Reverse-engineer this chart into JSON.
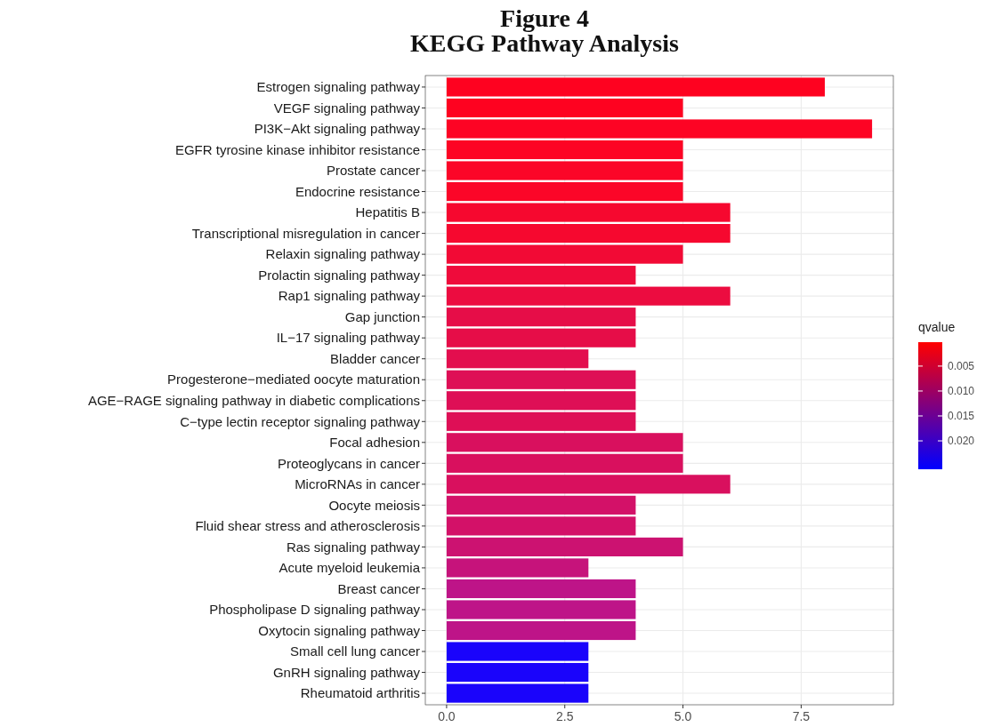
{
  "chart_data": {
    "type": "bar",
    "orientation": "horizontal",
    "title": "Figure 4\nKEGG Pathway Analysis",
    "categories": [
      "Estrogen signaling pathway",
      "VEGF signaling pathway",
      "PI3K−Akt signaling pathway",
      "EGFR tyrosine kinase inhibitor resistance",
      "Prostate cancer",
      "Endocrine resistance",
      "Hepatitis B",
      "Transcriptional misregulation in cancer",
      "Relaxin signaling pathway",
      "Prolactin signaling pathway",
      "Rap1 signaling pathway",
      "Gap junction",
      "IL−17 signaling pathway",
      "Bladder cancer",
      "Progesterone−mediated oocyte maturation",
      "AGE−RAGE signaling pathway in diabetic complications",
      "C−type lectin receptor signaling pathway",
      "Focal adhesion",
      "Proteoglycans in cancer",
      "MicroRNAs in cancer",
      "Oocyte meiosis",
      "Fluid shear stress and atherosclerosis",
      "Ras signaling pathway",
      "Acute myeloid leukemia",
      "Breast cancer",
      "Phospholipase D signaling pathway",
      "Oxytocin signaling pathway",
      "Small cell lung cancer",
      "GnRH signaling pathway",
      "Rheumatoid arthritis"
    ],
    "values": [
      8,
      5,
      9,
      5,
      5,
      5,
      6,
      6,
      5,
      4,
      6,
      4,
      4,
      3,
      4,
      4,
      4,
      5,
      5,
      6,
      4,
      4,
      5,
      3,
      4,
      4,
      4,
      3,
      3,
      3
    ],
    "colors": [
      "#fe0220",
      "#fe0220",
      "#fd0424",
      "#fd0424",
      "#fb0628",
      "#fb0628",
      "#f6082f",
      "#f6082f",
      "#f20a35",
      "#ef0b3b",
      "#ec0c40",
      "#e60d48",
      "#e60d48",
      "#e30e4e",
      "#de0f56",
      "#de0f56",
      "#de0f56",
      "#d9105e",
      "#d9105e",
      "#d9105e",
      "#d31168",
      "#d31168",
      "#cc1271",
      "#c6137b",
      "#be1488",
      "#be1488",
      "#be1488",
      "#1a04fb",
      "#1a04fb",
      "#1a04fb"
    ],
    "xlim": [
      -0.45,
      9.45
    ],
    "xticks": [
      {
        "value": 0,
        "label": "0.0"
      },
      {
        "value": 2.5,
        "label": "2.5"
      },
      {
        "value": 5,
        "label": "5.0"
      },
      {
        "value": 7.5,
        "label": "7.5"
      }
    ],
    "grid": true,
    "clabel": "qvalue",
    "clim": [
      0.0002,
      0.0257
    ],
    "cticks": [
      0.005,
      {
        "value": 0.01,
        "label": "0.010"
      },
      0.015,
      {
        "value": 0.02,
        "label": "0.020"
      }
    ]
  }
}
